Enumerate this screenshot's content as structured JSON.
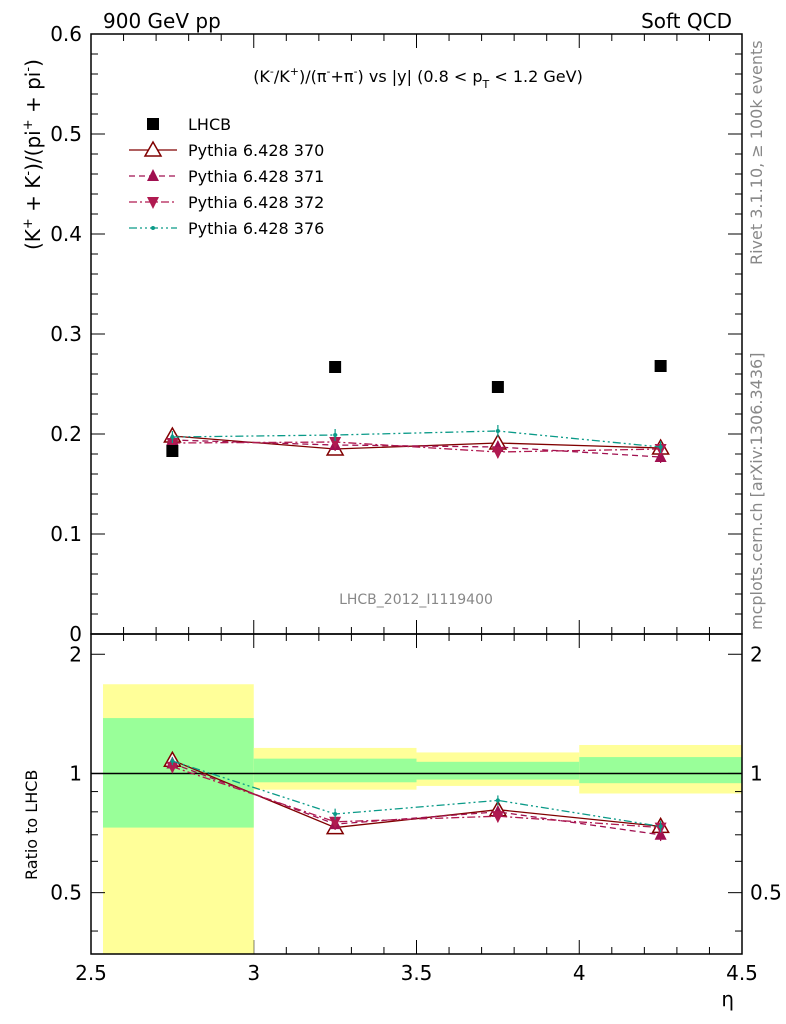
{
  "header": {
    "left": "900 GeV pp",
    "right": "Soft QCD"
  },
  "side": {
    "rivet": "Rivet 3.1.10, ≥ 100k events",
    "mcplots": "mcplots.cern.ch [arXiv:1306.3436]"
  },
  "analysis_id": "LHCB_2012_I1119400",
  "chart_data": [
    {
      "type": "scatter",
      "title": "(K⁻/K⁺)/(π⁻+π⁻) vs |y| (0.8 < p_T < 1.2 GeV)",
      "xlabel": "η",
      "ylabel": "(K⁺ + K⁻)/(pi⁺ + pi⁻)",
      "xlim": [
        2.5,
        4.5
      ],
      "ylim": [
        0,
        0.6
      ],
      "yticks": [
        "0",
        "0.1",
        "0.2",
        "0.3",
        "0.4",
        "0.5",
        "0.6"
      ],
      "legend_position": "top-left",
      "x": [
        2.75,
        3.25,
        3.75,
        4.25
      ],
      "bin_edges": [
        2.5,
        3.0,
        3.5,
        4.0,
        4.5
      ],
      "series": [
        {
          "name": "LHCB",
          "marker": "square",
          "color": "#000000",
          "values": [
            0.183,
            0.267,
            0.247,
            0.268
          ],
          "errors": [
            0.001,
            0.001,
            0.001,
            0.001
          ]
        },
        {
          "name": "Pythia 6.428 370",
          "marker": "triangle-up-open",
          "line": "solid",
          "color": "#800000",
          "values": [
            0.198,
            0.185,
            0.191,
            0.186
          ],
          "errors": [
            0.006,
            0.006,
            0.006,
            0.006
          ]
        },
        {
          "name": "Pythia 6.428 371",
          "marker": "triangle-up",
          "line": "dashed",
          "color": "#a01050",
          "values": [
            0.194,
            0.189,
            0.187,
            0.177
          ],
          "errors": [
            0.006,
            0.006,
            0.006,
            0.006
          ]
        },
        {
          "name": "Pythia 6.428 372",
          "marker": "triangle-down",
          "line": "dashdot",
          "color": "#b01a50",
          "values": [
            0.191,
            0.192,
            0.182,
            0.185
          ],
          "errors": [
            0.006,
            0.006,
            0.006,
            0.006
          ]
        },
        {
          "name": "Pythia 6.428 376",
          "marker": "dot",
          "line": "dashdotdot",
          "color": "#0a9a88",
          "values": [
            0.197,
            0.199,
            0.203,
            0.187
          ],
          "errors": [
            0.006,
            0.006,
            0.006,
            0.006
          ]
        }
      ]
    },
    {
      "type": "scatter",
      "ylabel": "Ratio to LHCB",
      "xlabel": "η",
      "xlim": [
        2.5,
        4.5
      ],
      "ylim": [
        0.35,
        2.25
      ],
      "ylog": true,
      "yticks": [
        "0.5",
        "1",
        "2"
      ],
      "xticks": [
        "2.5",
        "3",
        "3.5",
        "4",
        "4.5"
      ],
      "bands": {
        "bin_edges": [
          2.5,
          3.0,
          3.5,
          4.0,
          4.5
        ],
        "outer": {
          "color": "#ffff99",
          "low": [
            0.3,
            0.91,
            0.93,
            0.89
          ],
          "high": [
            1.68,
            1.16,
            1.13,
            1.18
          ]
        },
        "inner": {
          "color": "#99ff99",
          "low": [
            0.73,
            0.95,
            0.965,
            0.945
          ],
          "high": [
            1.38,
            1.09,
            1.07,
            1.1
          ]
        }
      },
      "x": [
        2.75,
        3.25,
        3.75,
        4.25
      ],
      "series": [
        {
          "name": "Pythia 6.428 370",
          "values": [
            1.08,
            0.73,
            0.81,
            0.735
          ],
          "errors": [
            0.025,
            0.025,
            0.025,
            0.025
          ]
        },
        {
          "name": "Pythia 6.428 371",
          "values": [
            1.06,
            0.745,
            0.8,
            0.7
          ],
          "errors": [
            0.025,
            0.025,
            0.025,
            0.025
          ]
        },
        {
          "name": "Pythia 6.428 372",
          "values": [
            1.04,
            0.755,
            0.78,
            0.73
          ],
          "errors": [
            0.025,
            0.025,
            0.025,
            0.025
          ]
        },
        {
          "name": "Pythia 6.428 376",
          "values": [
            1.075,
            0.79,
            0.855,
            0.735
          ],
          "errors": [
            0.025,
            0.025,
            0.025,
            0.025
          ]
        }
      ]
    }
  ]
}
